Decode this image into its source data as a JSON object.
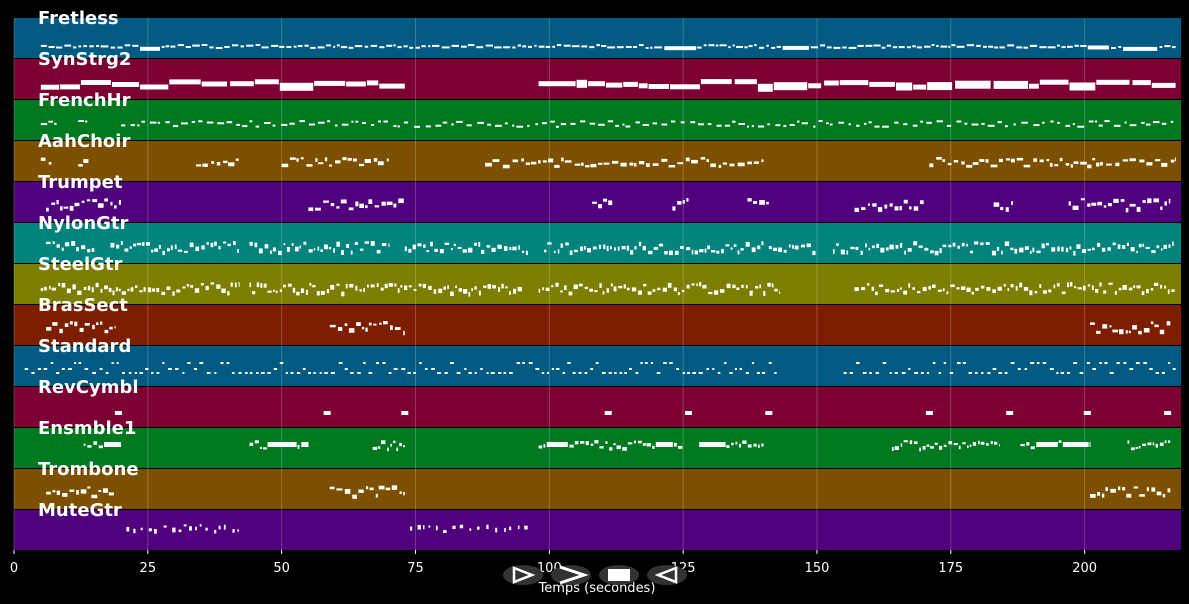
{
  "chart_data": {
    "type": "piano-roll",
    "xlabel": "Temps (secondes)",
    "xlim": [
      0,
      218
    ],
    "x_ticks": [
      0,
      25,
      50,
      75,
      100,
      125,
      150,
      175,
      200
    ],
    "grid": true,
    "tracks": [
      {
        "name": "Fretless",
        "color": "#005a82",
        "segments": [
          [
            5,
            217
          ]
        ],
        "density": 0.85,
        "pattern": "bass"
      },
      {
        "name": "SynStrg2",
        "color": "#7d0032",
        "segments": [
          [
            5,
            73
          ],
          [
            98,
            217
          ]
        ],
        "density": 0.95,
        "pattern": "pad"
      },
      {
        "name": "FrenchHr",
        "color": "#007820",
        "segments": [
          [
            5,
            8
          ],
          [
            12,
            14
          ],
          [
            20,
            217
          ]
        ],
        "density": 0.6,
        "pattern": "melody"
      },
      {
        "name": "AahChoir",
        "color": "#7d5000",
        "segments": [
          [
            5,
            7
          ],
          [
            12,
            14
          ],
          [
            34,
            42
          ],
          [
            50,
            70
          ],
          [
            88,
            140
          ],
          [
            171,
            217
          ]
        ],
        "density": 0.5,
        "pattern": "choir"
      },
      {
        "name": "Trumpet",
        "color": "#50007d",
        "segments": [
          [
            6,
            20
          ],
          [
            55,
            73
          ],
          [
            108,
            112
          ],
          [
            123,
            126
          ],
          [
            137,
            141
          ],
          [
            157,
            170
          ],
          [
            183,
            187
          ],
          [
            197,
            216
          ]
        ],
        "density": 0.7,
        "pattern": "brass"
      },
      {
        "name": "NylonGtr",
        "color": "#00827d",
        "segments": [
          [
            6,
            15
          ],
          [
            18,
            42
          ],
          [
            44,
            70
          ],
          [
            73,
            96
          ],
          [
            99,
            140
          ],
          [
            141,
            150
          ],
          [
            153,
            217
          ]
        ],
        "density": 0.9,
        "pattern": "strum"
      },
      {
        "name": "SteelGtr",
        "color": "#7d7d00",
        "segments": [
          [
            5,
            42
          ],
          [
            44,
            95
          ],
          [
            98,
            143
          ],
          [
            157,
            217
          ]
        ],
        "density": 0.9,
        "pattern": "strum"
      },
      {
        "name": "BrasSect",
        "color": "#7d1e00",
        "segments": [
          [
            6,
            19
          ],
          [
            59,
            73
          ],
          [
            201,
            216
          ]
        ],
        "density": 0.7,
        "pattern": "brass"
      },
      {
        "name": "Standard",
        "color": "#005a82",
        "segments": [
          [
            2,
            143
          ],
          [
            155,
            217
          ]
        ],
        "density": 0.7,
        "pattern": "drums"
      },
      {
        "name": "RevCymbl",
        "color": "#7d0032",
        "hits": [
          19.5,
          58.5,
          73,
          111,
          126,
          141,
          171,
          186,
          200.5,
          215.5
        ],
        "pattern": "hits"
      },
      {
        "name": "Ensmble1",
        "color": "#007820",
        "segments": [
          [
            13,
            20
          ],
          [
            44,
            55
          ],
          [
            67,
            73
          ],
          [
            98,
            125
          ],
          [
            128,
            140
          ],
          [
            164,
            184
          ],
          [
            188,
            201
          ],
          [
            208,
            216
          ]
        ],
        "density": 0.8,
        "pattern": "ensemble"
      },
      {
        "name": "Trombone",
        "color": "#7d5000",
        "segments": [
          [
            6,
            19
          ],
          [
            59,
            73
          ],
          [
            201,
            216
          ]
        ],
        "density": 0.7,
        "pattern": "brass"
      },
      {
        "name": "MuteGtr",
        "color": "#50007d",
        "segments": [
          [
            21,
            42
          ],
          [
            74,
            96
          ]
        ],
        "density": 0.55,
        "pattern": "mute"
      }
    ]
  },
  "controls": [
    {
      "name": "play-button",
      "icon": "play-icon"
    },
    {
      "name": "fast-forward-button",
      "icon": "fast-forward-icon"
    },
    {
      "name": "stop-button",
      "icon": "stop-icon"
    },
    {
      "name": "rewind-button",
      "icon": "rewind-icon"
    }
  ]
}
